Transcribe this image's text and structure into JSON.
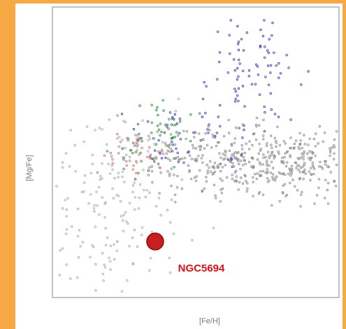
{
  "figure": {
    "y_axis_label": "[Mg/Fe]",
    "x_axis_label": "[Fe/H]",
    "annotation": "NGC5694"
  }
}
